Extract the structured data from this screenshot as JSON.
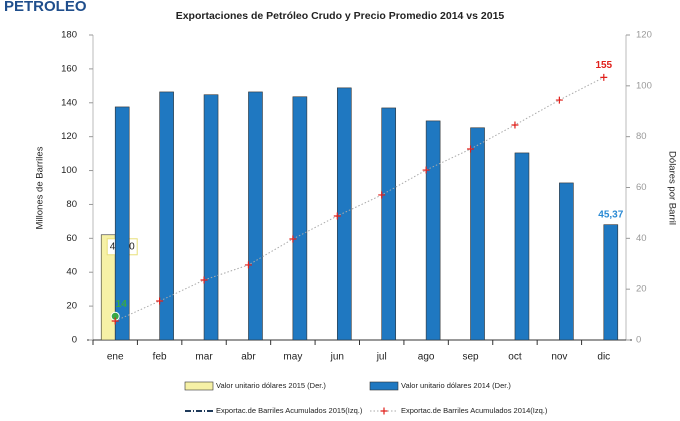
{
  "header": "PETROLEO",
  "chart_data": {
    "type": "bar",
    "title": "Exportaciones de Petróleo Crudo y Precio Promedio 2014 vs 2015",
    "y_label": "Millones de Barriles",
    "y2_label": "Dólares por Barril",
    "categories": [
      "ene",
      "feb",
      "mar",
      "abr",
      "may",
      "jun",
      "jul",
      "ago",
      "sep",
      "oct",
      "nov",
      "dic"
    ],
    "ylim": [
      0,
      180
    ],
    "yticks": [
      0,
      20,
      40,
      60,
      80,
      100,
      120,
      140,
      160,
      180
    ],
    "y2lim": [
      0,
      120
    ],
    "y2ticks": [
      0,
      20,
      40,
      60,
      80,
      100,
      120
    ],
    "grid": false,
    "legend": "bottom",
    "series": [
      {
        "name": "Valor unitario dólares 2015 (Der.)",
        "type": "bar",
        "axis": "y2",
        "color": "#f6f1a6",
        "label_color": "#333333",
        "values": [
          41.4,
          null,
          null,
          null,
          null,
          null,
          null,
          null,
          null,
          null,
          null,
          null
        ],
        "value_labels": [
          "41,40",
          null,
          null,
          null,
          null,
          null,
          null,
          null,
          null,
          null,
          null,
          null
        ]
      },
      {
        "name": "Valor unitario dólares 2014 (Der.)",
        "type": "bar",
        "axis": "y2",
        "color": "#1f78c1",
        "label_color": "#2a8ad4",
        "values": [
          91.7,
          97.6,
          96.5,
          97.6,
          95.7,
          99.2,
          91.3,
          86.2,
          83.5,
          73.6,
          61.8,
          45.37
        ],
        "value_labels": [
          null,
          null,
          null,
          null,
          null,
          null,
          null,
          null,
          null,
          null,
          null,
          "45,37"
        ]
      },
      {
        "name": "Exportac.de Barriles Acumulados 2015(Izq.)",
        "type": "line",
        "color": "#1f3a5a",
        "label_color": "#3aa845",
        "values": [
          14,
          null,
          null,
          null,
          null,
          null,
          null,
          null,
          null,
          null,
          null,
          null
        ],
        "value_labels": [
          "14",
          null,
          null,
          null,
          null,
          null,
          null,
          null,
          null,
          null,
          null,
          null
        ]
      },
      {
        "name": "Exportac.de Barriles Acumulados 2014(Izq.)",
        "type": "line",
        "color": "#e0201b",
        "label_color": "#e0201b",
        "values": [
          11.2,
          23,
          35.4,
          44.3,
          59.6,
          73.2,
          85.6,
          100.3,
          112.7,
          126.9,
          141.6,
          155
        ],
        "value_labels": [
          null,
          null,
          null,
          null,
          null,
          null,
          null,
          null,
          null,
          null,
          null,
          "155"
        ]
      }
    ]
  }
}
